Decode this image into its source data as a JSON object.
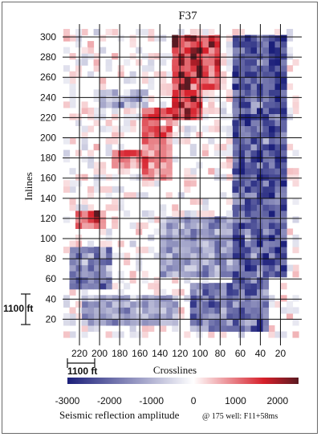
{
  "chart_data": {
    "type": "heatmap",
    "title": "F37",
    "xlabel": "Crosslines",
    "ylabel": "Inlines",
    "xlim": [
      232,
      2
    ],
    "ylim": [
      2,
      308
    ],
    "x_ticks": [
      220,
      200,
      180,
      160,
      140,
      120,
      100,
      80,
      60,
      40,
      20
    ],
    "y_ticks": [
      20,
      40,
      60,
      80,
      100,
      120,
      140,
      160,
      180,
      200,
      220,
      240,
      260,
      280,
      300
    ],
    "grid": true,
    "scale_bar_labels": {
      "vertical": "1100 ft",
      "horizontal": "1100 ft"
    },
    "colorbar": {
      "label": "Seismic reflection amplitude",
      "range": [
        -3000,
        2500
      ],
      "ticks": [
        -3000,
        -2000,
        -1000,
        0,
        1000,
        2000
      ],
      "tick_labels": [
        "-3000",
        "-2000",
        "-1000",
        "0",
        "1000",
        "2000"
      ],
      "colors": {
        "negative": "#1b1f7a",
        "zero": "#ffffff",
        "positive": "#d61f2a",
        "max": "#5a1a22"
      }
    },
    "annotation": "@ 175 well: F11+58ms",
    "regions": [
      {
        "xmin": 30,
        "xmax": 70,
        "ymin": 50,
        "ymax": 300,
        "amp": -2600
      },
      {
        "xmin": 15,
        "xmax": 30,
        "ymin": 60,
        "ymax": 300,
        "amp": -2800
      },
      {
        "xmin": 30,
        "xmax": 110,
        "ymin": 8,
        "ymax": 55,
        "amp": -2200
      },
      {
        "xmin": 70,
        "xmax": 140,
        "ymin": 60,
        "ymax": 120,
        "amp": -1600
      },
      {
        "xmin": 190,
        "xmax": 230,
        "ymin": 50,
        "ymax": 90,
        "amp": -2000
      },
      {
        "xmin": 120,
        "xmax": 220,
        "ymin": 15,
        "ymax": 45,
        "amp": -1500
      },
      {
        "xmin": 150,
        "xmax": 200,
        "ymin": 230,
        "ymax": 250,
        "amp": -1200
      },
      {
        "xmin": 100,
        "xmax": 125,
        "ymin": 220,
        "ymax": 300,
        "amp": 2300
      },
      {
        "xmin": 80,
        "xmax": 100,
        "ymin": 250,
        "ymax": 300,
        "amp": 1900
      },
      {
        "xmin": 130,
        "xmax": 160,
        "ymin": 200,
        "ymax": 230,
        "amp": 1700
      },
      {
        "xmin": 150,
        "xmax": 190,
        "ymin": 170,
        "ymax": 190,
        "amp": 1500
      },
      {
        "xmin": 195,
        "xmax": 225,
        "ymin": 110,
        "ymax": 130,
        "amp": 1800
      },
      {
        "xmin": 130,
        "xmax": 155,
        "ymin": 160,
        "ymax": 200,
        "amp": 1200
      }
    ]
  }
}
